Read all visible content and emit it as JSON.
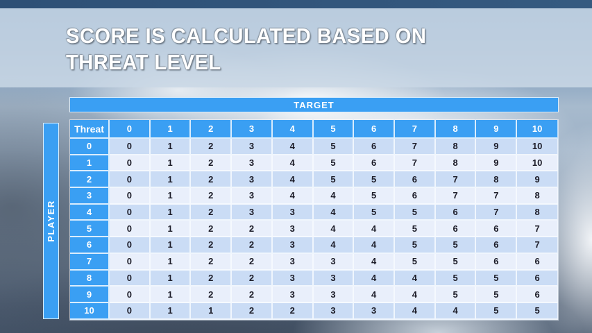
{
  "slide": {
    "title_line1": "SCORE IS CALCULATED BASED ON",
    "title_line2": "THREAT LEVEL"
  },
  "chart_data": {
    "type": "table",
    "title": "SCORE IS CALCULATED BASED ON THREAT LEVEL",
    "column_axis_label": "TARGET",
    "row_axis_label": "PLAYER",
    "corner_label": "Threat",
    "column_headers": [
      "0",
      "1",
      "2",
      "3",
      "4",
      "5",
      "6",
      "7",
      "8",
      "9",
      "10"
    ],
    "row_headers": [
      "0",
      "1",
      "2",
      "3",
      "4",
      "5",
      "6",
      "7",
      "8",
      "9",
      "10"
    ],
    "values": [
      [
        0,
        1,
        2,
        3,
        4,
        5,
        6,
        7,
        8,
        9,
        10
      ],
      [
        0,
        1,
        2,
        3,
        4,
        5,
        6,
        7,
        8,
        9,
        10
      ],
      [
        0,
        1,
        2,
        3,
        4,
        5,
        5,
        6,
        7,
        8,
        9
      ],
      [
        0,
        1,
        2,
        3,
        4,
        4,
        5,
        6,
        7,
        7,
        8
      ],
      [
        0,
        1,
        2,
        3,
        3,
        4,
        5,
        5,
        6,
        7,
        8
      ],
      [
        0,
        1,
        2,
        2,
        3,
        4,
        4,
        5,
        6,
        6,
        7
      ],
      [
        0,
        1,
        2,
        2,
        3,
        4,
        4,
        5,
        5,
        6,
        7
      ],
      [
        0,
        1,
        2,
        2,
        3,
        3,
        4,
        5,
        5,
        6,
        6
      ],
      [
        0,
        1,
        2,
        2,
        3,
        3,
        4,
        4,
        5,
        5,
        6
      ],
      [
        0,
        1,
        2,
        2,
        3,
        3,
        4,
        4,
        5,
        5,
        6
      ],
      [
        0,
        1,
        1,
        2,
        2,
        3,
        3,
        4,
        4,
        5,
        5
      ]
    ]
  },
  "colors": {
    "accent_blue": "#3A9FF3",
    "band_dark": "#CADCF5",
    "band_light": "#E9EFFB",
    "title_band": "#C9D7E5",
    "top_strip": "#2E5076",
    "cell_text": "#1C1C28"
  }
}
